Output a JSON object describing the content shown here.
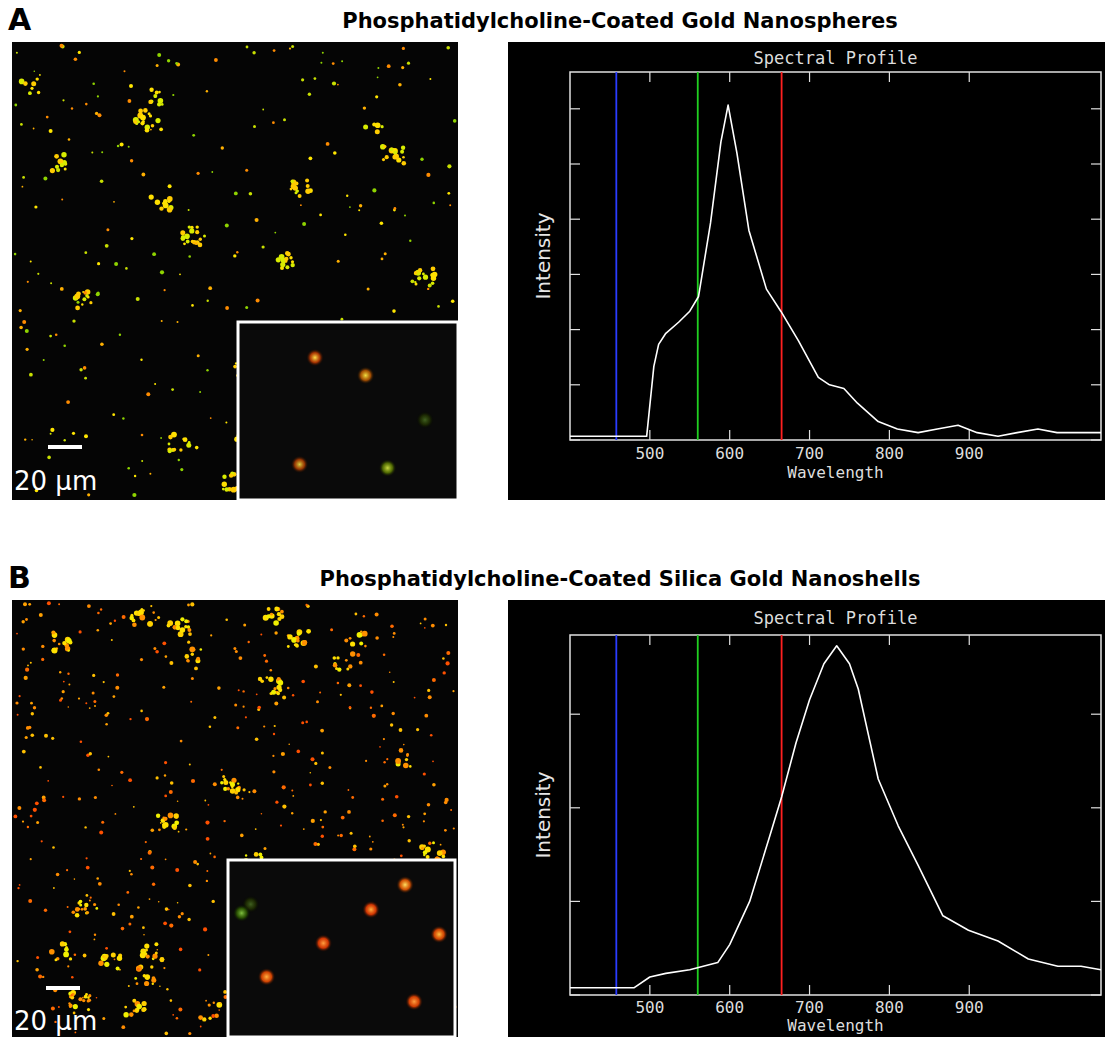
{
  "chart_data": [
    {
      "type": "line",
      "panel": "A",
      "title": "Phosphatidylcholine-Coated Gold Nanospheres",
      "scale_label": "20 μm",
      "subtitle": "Spectral Profile",
      "x_label": "Wavelength",
      "y_label": "Intensity",
      "x": [
        400,
        420,
        440,
        460,
        480,
        496,
        505,
        511,
        520,
        536,
        550,
        561,
        576,
        589,
        598,
        609,
        624,
        646,
        664,
        686,
        711,
        725,
        743,
        760,
        786,
        810,
        836,
        860,
        886,
        910,
        936,
        960,
        986,
        1010,
        1040,
        1065
      ],
      "values": [
        1,
        1,
        1,
        1,
        1,
        1,
        20,
        26,
        29,
        32,
        35,
        39,
        59,
        81,
        91,
        78,
        57,
        41,
        35,
        27,
        17,
        15,
        14,
        10,
        5,
        3,
        2,
        3,
        4,
        2,
        1,
        2,
        3,
        2,
        2,
        2
      ],
      "color": "#ffffff",
      "xlim": [
        400,
        1065
      ],
      "xticks": [
        500,
        600,
        700,
        800,
        900
      ],
      "ylim": [
        0,
        100
      ],
      "yticks": [
        0,
        15,
        30,
        45,
        60,
        75,
        90
      ],
      "tick_labels": "x",
      "reference_lines": [
        {
          "x": 458,
          "color": "#2a3cff"
        },
        {
          "x": 560,
          "color": "#20d020"
        },
        {
          "x": 665,
          "color": "#ff2020"
        }
      ]
    },
    {
      "type": "line",
      "panel": "B",
      "title": "Phosphatidylcholine-Coated Silica Gold Nanoshells",
      "scale_label": "20 μm",
      "subtitle": "Spectral Profile",
      "x_label": "Wavelength",
      "y_label": "Intensity",
      "x": [
        400,
        440,
        480,
        500,
        520,
        550,
        585,
        600,
        625,
        650,
        665,
        683,
        700,
        718,
        734,
        750,
        761,
        786,
        811,
        836,
        867,
        899,
        936,
        974,
        1011,
        1040,
        1065
      ],
      "values": [
        2,
        2,
        2,
        5,
        6,
        7,
        9,
        14,
        26,
        44,
        55,
        70,
        82,
        92,
        97,
        92,
        85,
        60,
        47,
        36,
        22,
        18,
        15,
        10,
        8,
        8,
        7
      ],
      "color": "#ffffff",
      "xlim": [
        400,
        1065
      ],
      "xticks": [
        500,
        600,
        700,
        800,
        900
      ],
      "ylim": [
        0,
        100
      ],
      "yticks": [
        0,
        26,
        52,
        78
      ],
      "tick_labels": "x",
      "reference_lines": [
        {
          "x": 458,
          "color": "#2a3cff"
        },
        {
          "x": 560,
          "color": "#20d020"
        },
        {
          "x": 665,
          "color": "#ff2020"
        }
      ]
    }
  ]
}
